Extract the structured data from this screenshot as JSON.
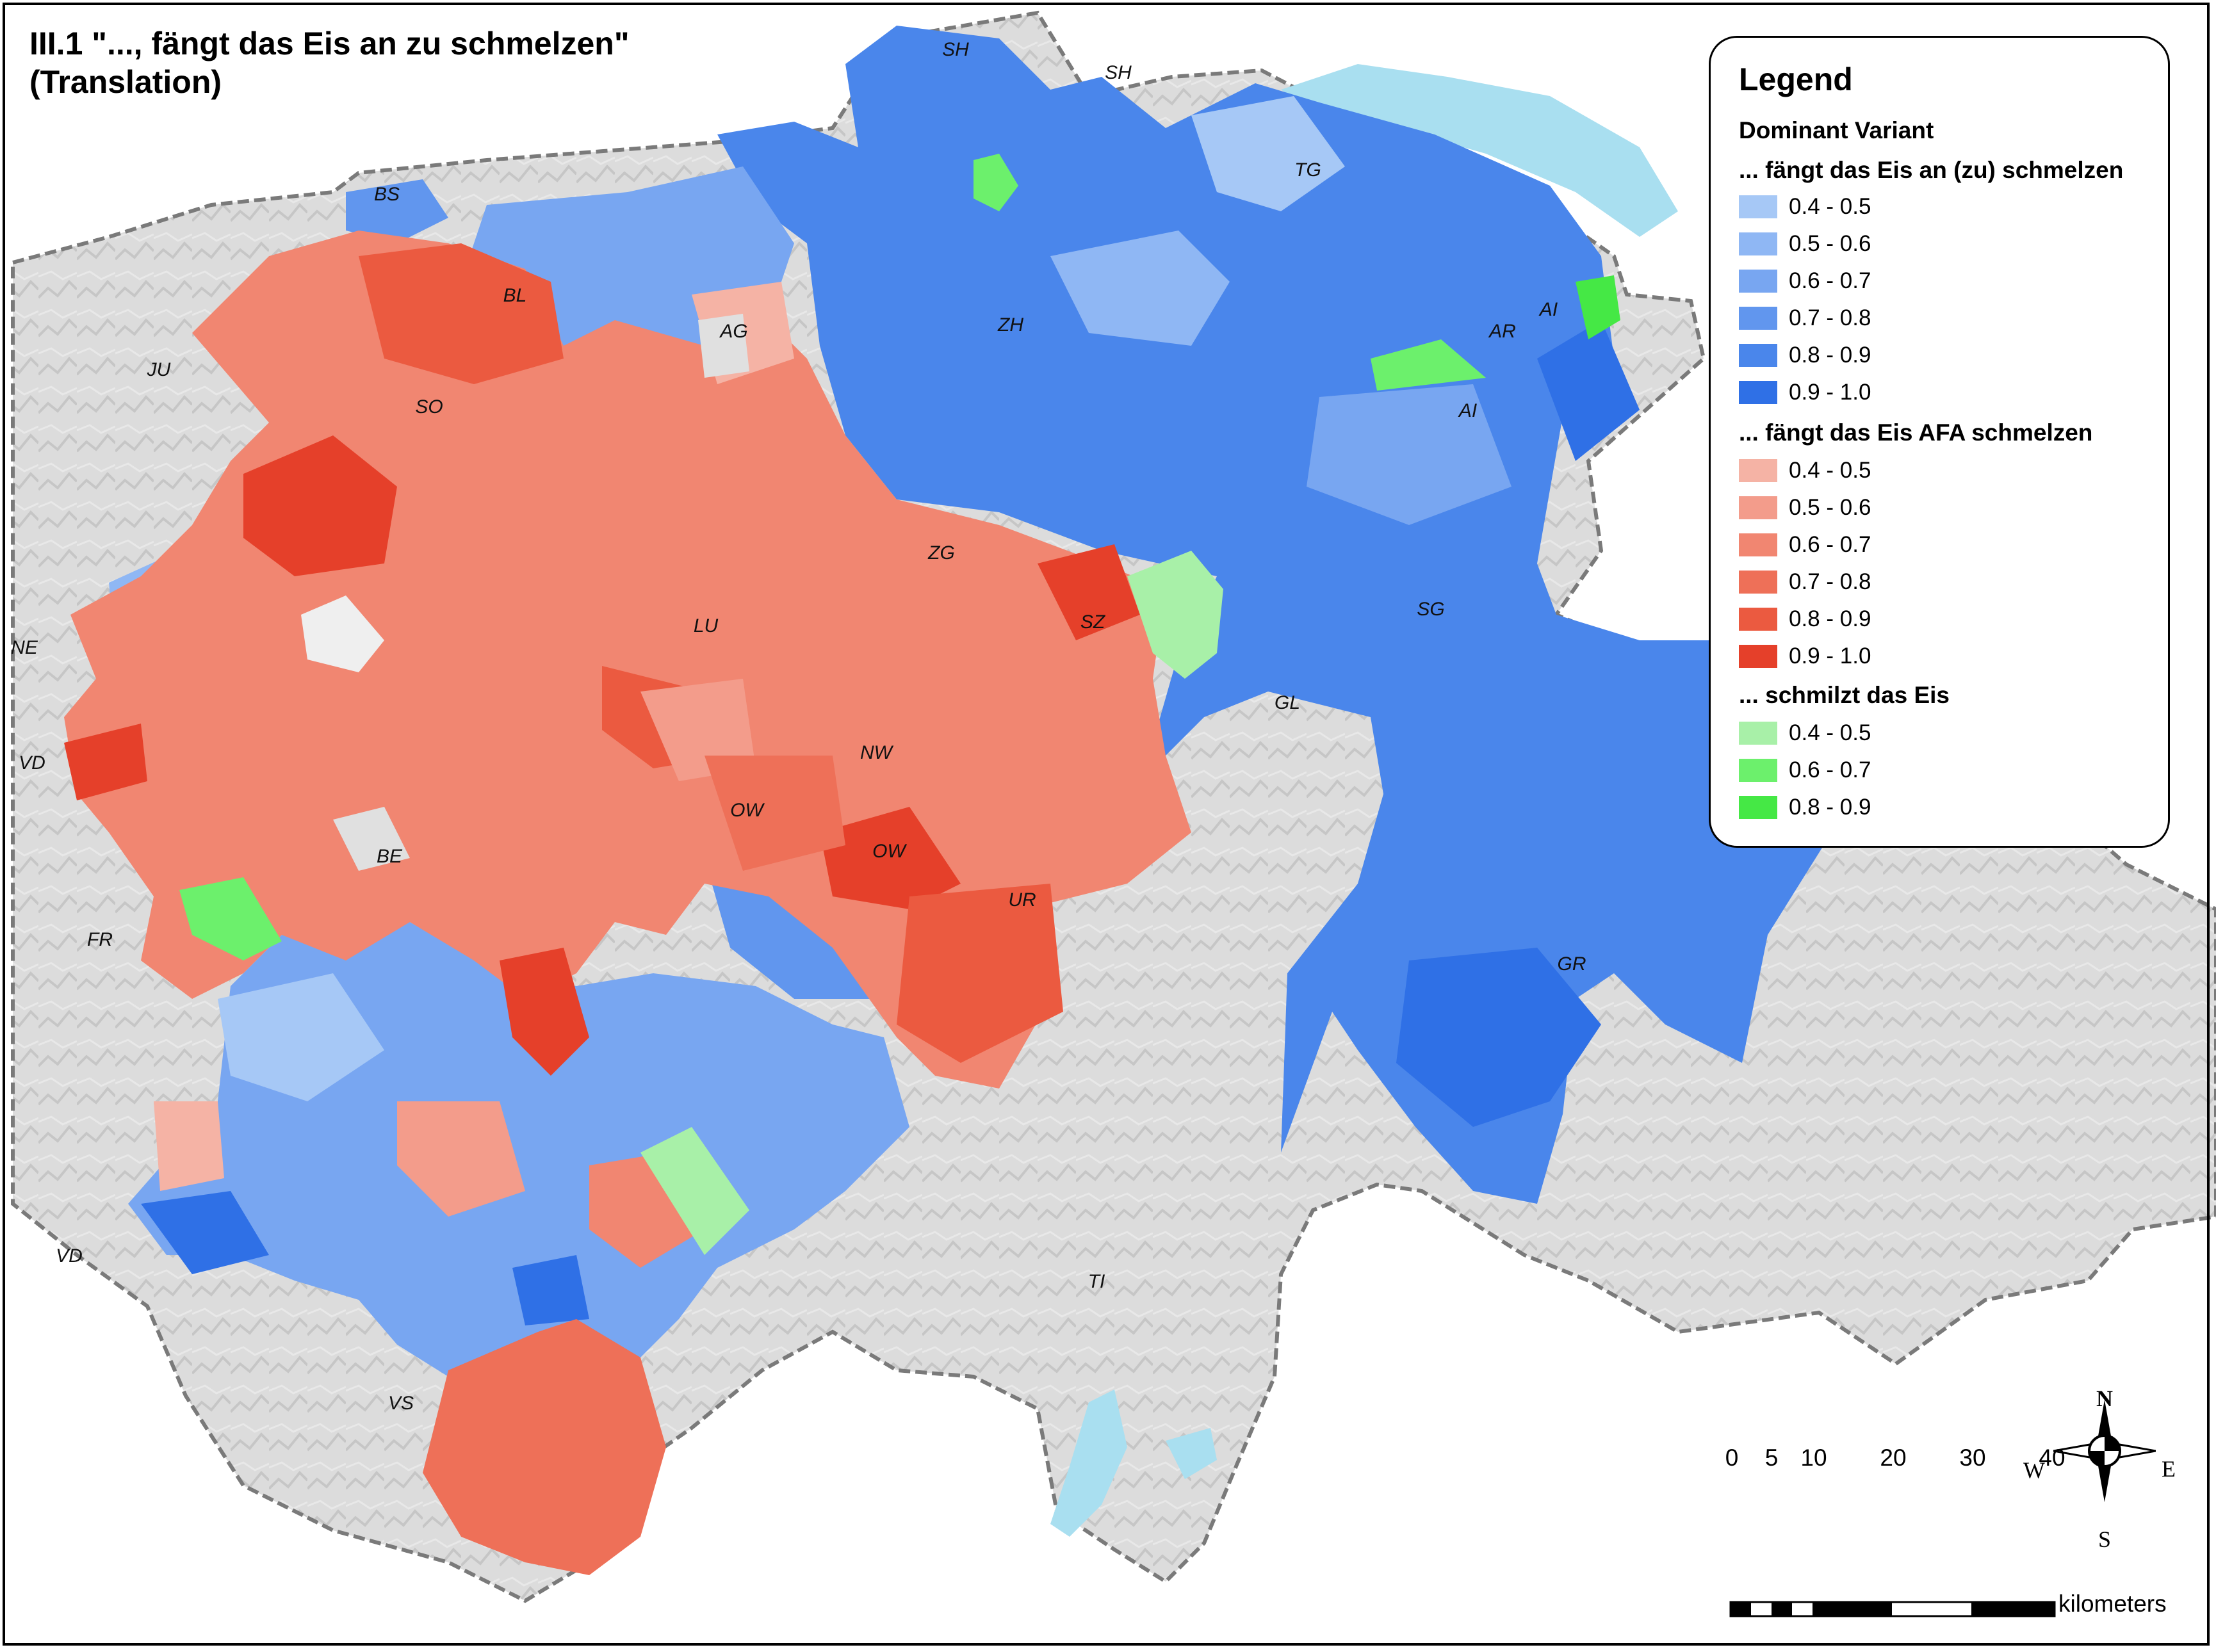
{
  "title": {
    "line1": "III.1 \"..., fängt das Eis an zu schmelzen\"",
    "line2": "(Translation)"
  },
  "cantons": [
    {
      "id": "SH",
      "label": "SH"
    },
    {
      "id": "SH2",
      "label": "SH"
    },
    {
      "id": "BS",
      "label": "BS"
    },
    {
      "id": "TG",
      "label": "TG"
    },
    {
      "id": "BL",
      "label": "BL"
    },
    {
      "id": "AG",
      "label": "AG"
    },
    {
      "id": "ZH",
      "label": "ZH"
    },
    {
      "id": "AR",
      "label": "AR"
    },
    {
      "id": "AI",
      "label": "AI"
    },
    {
      "id": "AI2",
      "label": "AI"
    },
    {
      "id": "JU",
      "label": "JU"
    },
    {
      "id": "SO",
      "label": "SO"
    },
    {
      "id": "ZG",
      "label": "ZG"
    },
    {
      "id": "NE",
      "label": "NE"
    },
    {
      "id": "LU",
      "label": "LU"
    },
    {
      "id": "SZ",
      "label": "SZ"
    },
    {
      "id": "SG",
      "label": "SG"
    },
    {
      "id": "GL",
      "label": "GL"
    },
    {
      "id": "VD",
      "label": "VD"
    },
    {
      "id": "NW",
      "label": "NW"
    },
    {
      "id": "OW",
      "label": "OW"
    },
    {
      "id": "OW2",
      "label": "OW"
    },
    {
      "id": "BE",
      "label": "BE"
    },
    {
      "id": "UR",
      "label": "UR"
    },
    {
      "id": "FR",
      "label": "FR"
    },
    {
      "id": "GR",
      "label": "GR"
    },
    {
      "id": "VD2",
      "label": "VD"
    },
    {
      "id": "TI",
      "label": "TI"
    },
    {
      "id": "VS",
      "label": "VS"
    }
  ],
  "legend": {
    "title": "Legend",
    "subtitle": "Dominant Variant",
    "groups": [
      {
        "name": "... fängt das Eis an (zu) schmelzen",
        "items": [
          {
            "label": "0.4 - 0.5",
            "color": "#a6c8f6"
          },
          {
            "label": "0.5 - 0.6",
            "color": "#8fb7f4"
          },
          {
            "label": "0.6 - 0.7",
            "color": "#78a6f1"
          },
          {
            "label": "0.7 - 0.8",
            "color": "#6196ee"
          },
          {
            "label": "0.8 - 0.9",
            "color": "#4a86eb"
          },
          {
            "label": "0.9 - 1.0",
            "color": "#2f70e6"
          }
        ]
      },
      {
        "name": "... fängt das Eis AFA schmelzen",
        "items": [
          {
            "label": "0.4 - 0.5",
            "color": "#f5b3a5"
          },
          {
            "label": "0.5 - 0.6",
            "color": "#f39c8b"
          },
          {
            "label": "0.6 - 0.7",
            "color": "#f18671"
          },
          {
            "label": "0.7 - 0.8",
            "color": "#ee7058"
          },
          {
            "label": "0.8 - 0.9",
            "color": "#eb5a40"
          },
          {
            "label": "0.9 - 1.0",
            "color": "#e5402a"
          }
        ]
      },
      {
        "name": "... schmilzt das Eis",
        "items": [
          {
            "label": "0.4 - 0.5",
            "color": "#a8f0a8"
          },
          {
            "label": "0.6 - 0.7",
            "color": "#6cf06c"
          },
          {
            "label": "0.8 - 0.9",
            "color": "#45e845"
          }
        ]
      }
    ]
  },
  "compass": {
    "n": "N",
    "s": "S",
    "e": "E",
    "w": "W"
  },
  "scale_bar": {
    "ticks": [
      "0",
      "5",
      "10",
      "20",
      "30",
      "40"
    ],
    "unit": "kilometers"
  }
}
